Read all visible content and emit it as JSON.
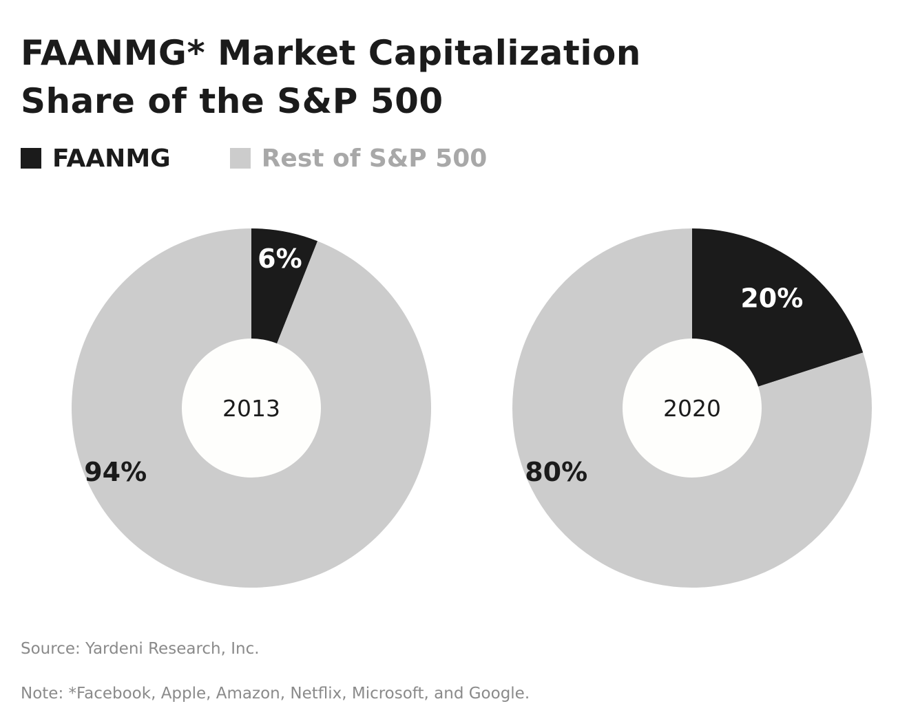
{
  "chart_data": {
    "type": "pie",
    "title": [
      "FAANMG* Market Capitalization",
      "Share of the S&P 500"
    ],
    "legend": [
      {
        "name": "FAANMG",
        "color": "#1b1b1b"
      },
      {
        "name": "Rest of S&P 500",
        "color": "#cccccc"
      }
    ],
    "center_color": "#fefefc",
    "charts": [
      {
        "center_label": "2013",
        "slices": [
          {
            "name": "FAANMG",
            "value": 6,
            "label": "6%",
            "color": "#1b1b1b",
            "label_color": "#ffffff"
          },
          {
            "name": "Rest of S&P 500",
            "value": 94,
            "label": "94%",
            "color": "#cccccc",
            "label_color": "#1b1b1b"
          }
        ]
      },
      {
        "center_label": "2020",
        "slices": [
          {
            "name": "FAANMG",
            "value": 20,
            "label": "20%",
            "color": "#1b1b1b",
            "label_color": "#ffffff"
          },
          {
            "name": "Rest of S&P 500",
            "value": 80,
            "label": "80%",
            "color": "#cccccc",
            "label_color": "#1b1b1b"
          }
        ]
      }
    ],
    "source": "Source: Yardeni Research, Inc.",
    "note": "Note: *Facebook, Apple, Amazon, Netflix, Microsoft, and Google."
  }
}
